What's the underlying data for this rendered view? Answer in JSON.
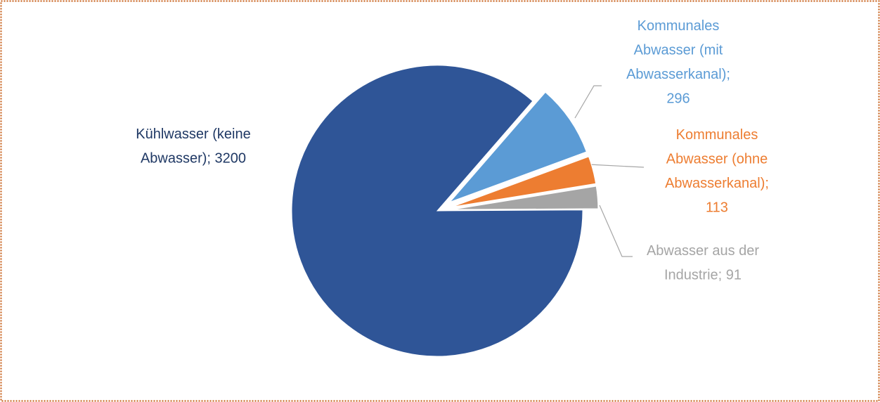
{
  "chart_data": {
    "type": "pie",
    "values": [
      296,
      113,
      91,
      3200
    ],
    "value_labels": [
      "Kommunales Abwasser (mit Abwasserkanal); 296",
      "Kommunales Abwasser (ohne Abwasserkanal); 113",
      "Abwasser aus der Industrie; 91",
      "Kühlwasser (keine Abwasser); 3200"
    ],
    "colors": [
      "#5b9bd5",
      "#ed7d31",
      "#a5a5a5",
      "#2f5597"
    ],
    "label_colors": [
      "#5b9bd5",
      "#ed7d31",
      "#a5a5a5",
      "#1f3864"
    ]
  }
}
